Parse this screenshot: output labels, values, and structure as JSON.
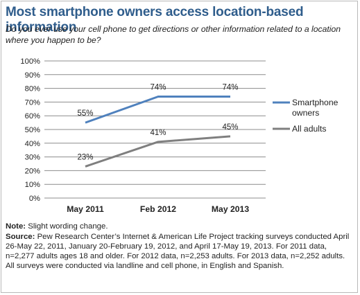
{
  "title": "Most smartphone owners access location-based information",
  "subtitle": "Do you ever use your cell phone to get directions or other information related to a location where you happen to be?",
  "notes": {
    "note_label": "Note:",
    "note_text": " Slight wording change.",
    "source_label": "Source:",
    "source_text": " Pew Research Center’s Internet & American Life Project tracking surveys conducted April 26-May 22, 2011, January 20-February 19, 2012, and April 17-May 19, 2013. For 2011 data, n=2,277 adults ages 18 and older. For 2012 data, n=2,253 adults. For 2013 data, n=2,252 adults. All surveys were conducted via landline and cell phone, in English and Spanish."
  },
  "colors": {
    "title": "#2f5d8c",
    "smartphone": "#4f81bd",
    "all_adults": "#7f7f7f",
    "grid": "#8c8c8c"
  },
  "chart_data": {
    "type": "line",
    "categories": [
      "May 2011",
      "Feb 2012",
      "May 2013"
    ],
    "ylim": [
      0,
      100
    ],
    "y_ticks": [
      "0%",
      "10%",
      "20%",
      "30%",
      "40%",
      "50%",
      "60%",
      "70%",
      "80%",
      "90%",
      "100%"
    ],
    "grid": true,
    "legend_position": "right",
    "series": [
      {
        "name": "Smartphone owners",
        "values": [
          55,
          74,
          74
        ],
        "labels": [
          "55%",
          "74%",
          "74%"
        ],
        "color": "#4f81bd"
      },
      {
        "name": "All adults",
        "values": [
          23,
          41,
          45
        ],
        "labels": [
          "23%",
          "41%",
          "45%"
        ],
        "color": "#7f7f7f"
      }
    ]
  }
}
